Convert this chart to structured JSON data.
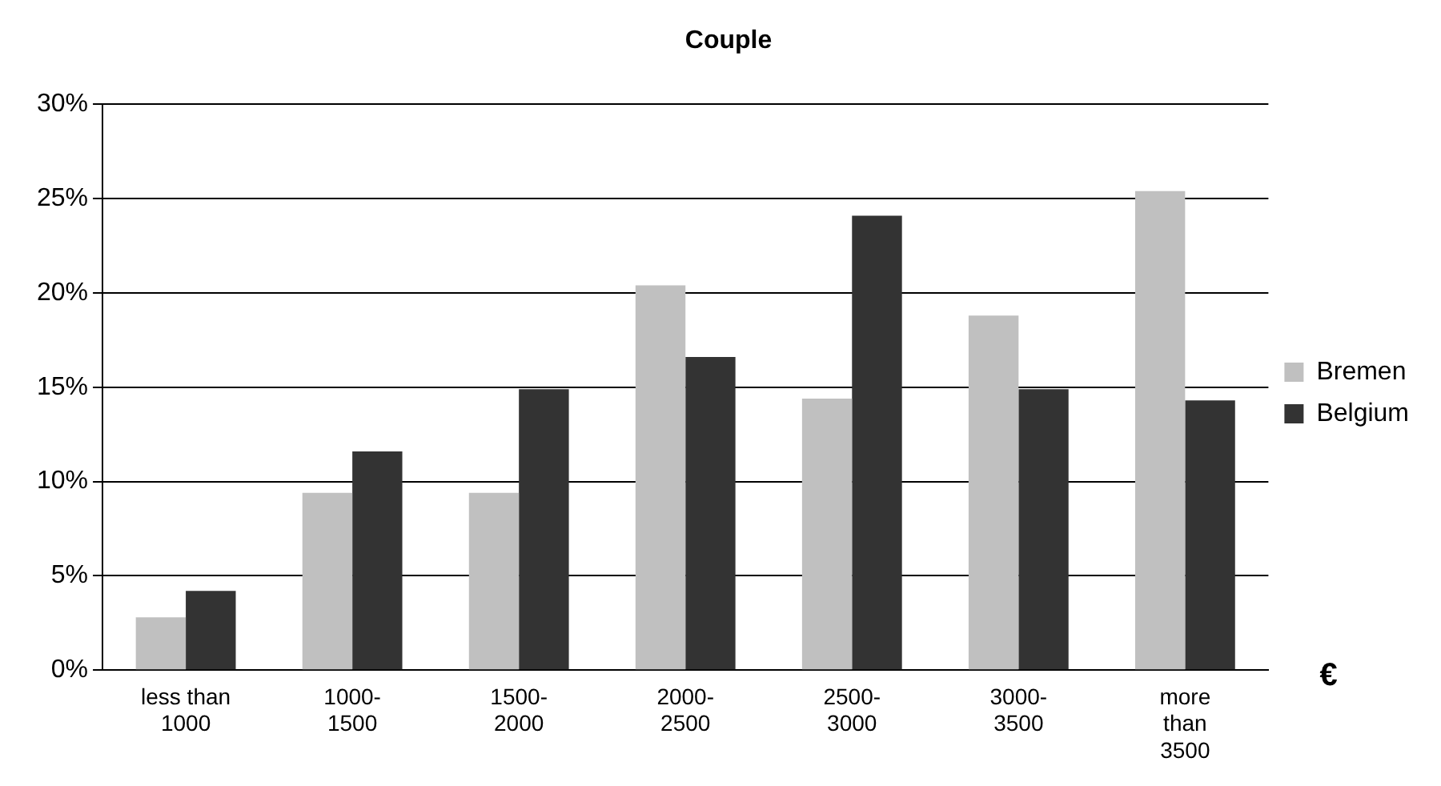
{
  "chart_data": {
    "type": "bar",
    "title": "Couple",
    "xlabel": "€",
    "categories": [
      "less than 1000",
      "1000-1500",
      "1500-2000",
      "2000-2500",
      "2500-3000",
      "3000-3500",
      "more than 3500"
    ],
    "series": [
      {
        "name": "Bremen",
        "color": "#c0c0c0",
        "values": [
          2.8,
          9.4,
          9.4,
          20.4,
          14.4,
          18.8,
          25.4
        ]
      },
      {
        "name": "Belgium",
        "color": "#333333",
        "values": [
          4.2,
          11.6,
          14.9,
          16.6,
          24.1,
          14.9,
          14.3
        ]
      }
    ],
    "ylim": [
      0,
      30
    ],
    "yticks": [
      {
        "value": 0,
        "label": "0%"
      },
      {
        "value": 5,
        "label": "5%"
      },
      {
        "value": 10,
        "label": "10%"
      },
      {
        "value": 15,
        "label": "15%"
      },
      {
        "value": 20,
        "label": "20%"
      },
      {
        "value": 25,
        "label": "25%"
      },
      {
        "value": 30,
        "label": "30%"
      }
    ],
    "grid": "y",
    "legend": "right"
  }
}
